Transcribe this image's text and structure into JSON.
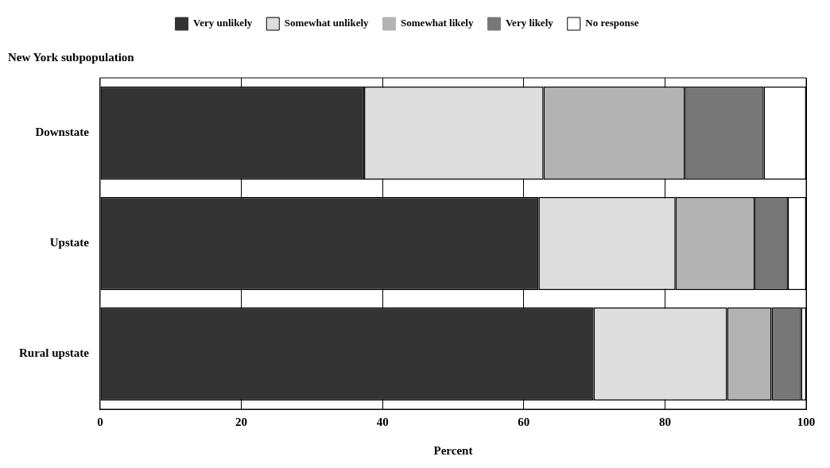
{
  "chart_data": {
    "type": "bar",
    "orientation": "horizontal",
    "stacked": true,
    "title": "New York subpopulation",
    "xlabel": "Percent",
    "categories": [
      "Downstate",
      "Upstate",
      "Rural upstate"
    ],
    "series": [
      {
        "name": "Very unlikely",
        "color": "#333333",
        "values": [
          37.4,
          62.1,
          69.9
        ]
      },
      {
        "name": "Somewhat unlikely",
        "color": "#dddddd",
        "values": [
          25.4,
          19.4,
          18.9
        ]
      },
      {
        "name": "Somewhat likely",
        "color": "#b3b3b3",
        "values": [
          20.0,
          11.2,
          6.3
        ]
      },
      {
        "name": "Very likely",
        "color": "#777777",
        "values": [
          11.2,
          4.7,
          4.2
        ]
      },
      {
        "name": "No response",
        "color": "#ffffff",
        "values": [
          6.0,
          2.6,
          0.7
        ]
      }
    ],
    "xlim": [
      0,
      100
    ],
    "xticks": [
      0,
      20,
      40,
      60,
      80,
      100
    ],
    "grid": "x",
    "legend": "top"
  }
}
